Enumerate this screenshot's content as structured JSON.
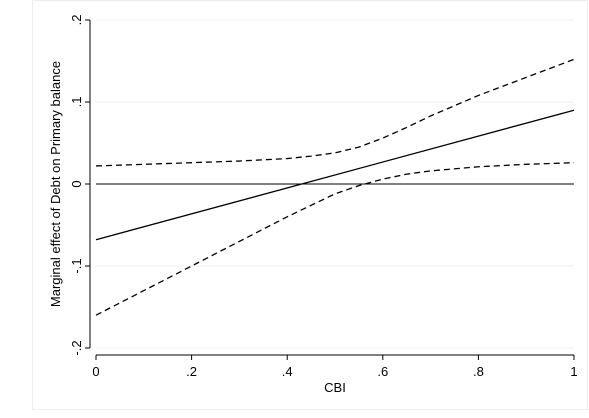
{
  "chart_data": {
    "type": "line",
    "title": "",
    "xlabel": "CBI",
    "ylabel": "Marginal effect of Debt on Primary balance",
    "xlim": [
      0,
      1
    ],
    "ylim": [
      -0.2,
      0.2
    ],
    "x_ticks": [
      {
        "value": 0,
        "label": "0"
      },
      {
        "value": 0.2,
        "label": ".2"
      },
      {
        "value": 0.4,
        "label": ".4"
      },
      {
        "value": 0.6,
        "label": ".6"
      },
      {
        "value": 0.8,
        "label": ".8"
      },
      {
        "value": 1,
        "label": "1"
      }
    ],
    "y_ticks": [
      {
        "value": -0.2,
        "label": "-.2"
      },
      {
        "value": -0.1,
        "label": "-.1"
      },
      {
        "value": 0,
        "label": "0"
      },
      {
        "value": 0.1,
        "label": ".1"
      },
      {
        "value": 0.2,
        "label": ".2"
      }
    ],
    "grid": true,
    "grid_color": "#eaf0f5",
    "reference_line": {
      "y": 0,
      "color": "#000000"
    },
    "series": [
      {
        "style": "solid",
        "color": "#000000",
        "x": [
          0,
          1
        ],
        "y": [
          -0.068,
          0.09
        ]
      },
      {
        "style": "dashed",
        "color": "#000000",
        "x": [
          0,
          0.1,
          0.2,
          0.3,
          0.4,
          0.45,
          0.5,
          0.55,
          0.6,
          0.65,
          0.7,
          0.8,
          0.9,
          1
        ],
        "y": [
          0.022,
          0.024,
          0.026,
          0.028,
          0.031,
          0.034,
          0.038,
          0.045,
          0.056,
          0.069,
          0.083,
          0.108,
          0.13,
          0.152
        ]
      },
      {
        "style": "dashed",
        "color": "#000000",
        "x": [
          0,
          0.1,
          0.2,
          0.3,
          0.4,
          0.45,
          0.5,
          0.55,
          0.6,
          0.65,
          0.7,
          0.8,
          0.9,
          1
        ],
        "y": [
          -0.16,
          -0.13,
          -0.1,
          -0.07,
          -0.04,
          -0.026,
          -0.012,
          -0.002,
          0.006,
          0.012,
          0.016,
          0.021,
          0.024,
          0.026
        ]
      }
    ]
  }
}
